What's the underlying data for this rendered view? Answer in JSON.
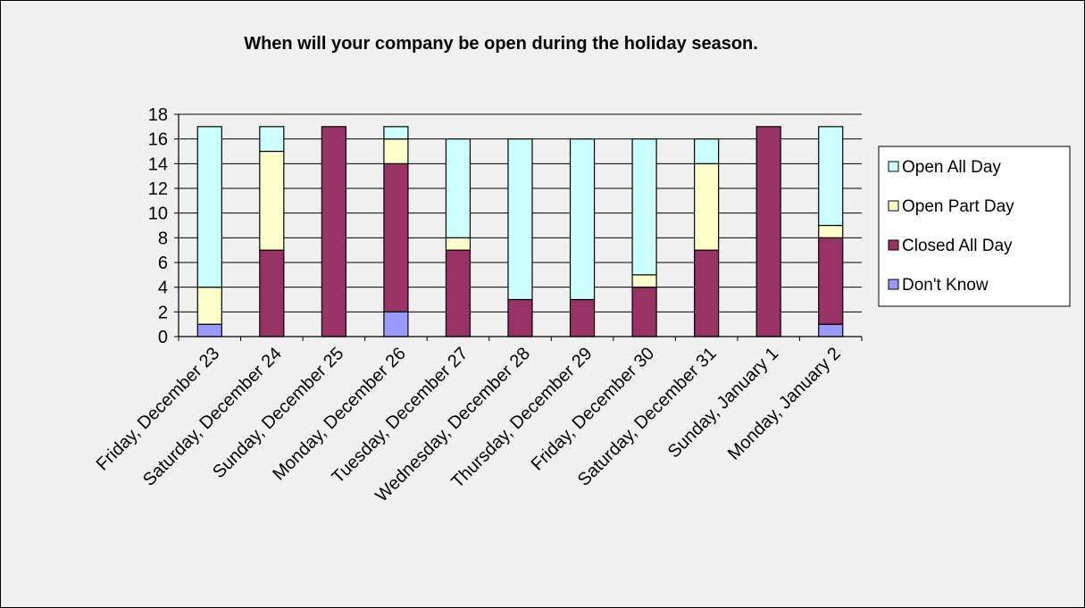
{
  "chart_data": {
    "type": "bar",
    "stacked": true,
    "title": "When will your company be open during the holiday season.",
    "xlabel": "",
    "ylabel": "",
    "ylim": [
      0,
      18
    ],
    "ytick_step": 2,
    "grid": true,
    "legend_position": "right",
    "categories": [
      "Friday, December 23",
      "Saturday, December 24",
      "Sunday, December 25",
      "Monday, December 26",
      "Tuesday, December 27",
      "Wednesday, December 28",
      "Thursday, December 29",
      "Friday, December 30",
      "Saturday, December 31",
      "Sunday, January 1",
      "Monday, January 2"
    ],
    "series": [
      {
        "name": "Don't Know",
        "color": "#9999ff",
        "values": [
          1,
          0,
          0,
          2,
          0,
          0,
          0,
          0,
          0,
          0,
          1
        ]
      },
      {
        "name": "Closed All Day",
        "color": "#993366",
        "values": [
          0,
          7,
          17,
          12,
          7,
          3,
          3,
          4,
          7,
          17,
          7
        ]
      },
      {
        "name": "Open Part Day",
        "color": "#ffffcc",
        "values": [
          3,
          8,
          0,
          2,
          1,
          0,
          0,
          1,
          7,
          0,
          1
        ]
      },
      {
        "name": "Open All Day",
        "color": "#ccffff",
        "values": [
          13,
          2,
          0,
          1,
          8,
          13,
          13,
          11,
          2,
          0,
          8
        ]
      }
    ],
    "legend_order": [
      "Open All Day",
      "Open Part Day",
      "Closed All Day",
      "Don't Know"
    ]
  }
}
